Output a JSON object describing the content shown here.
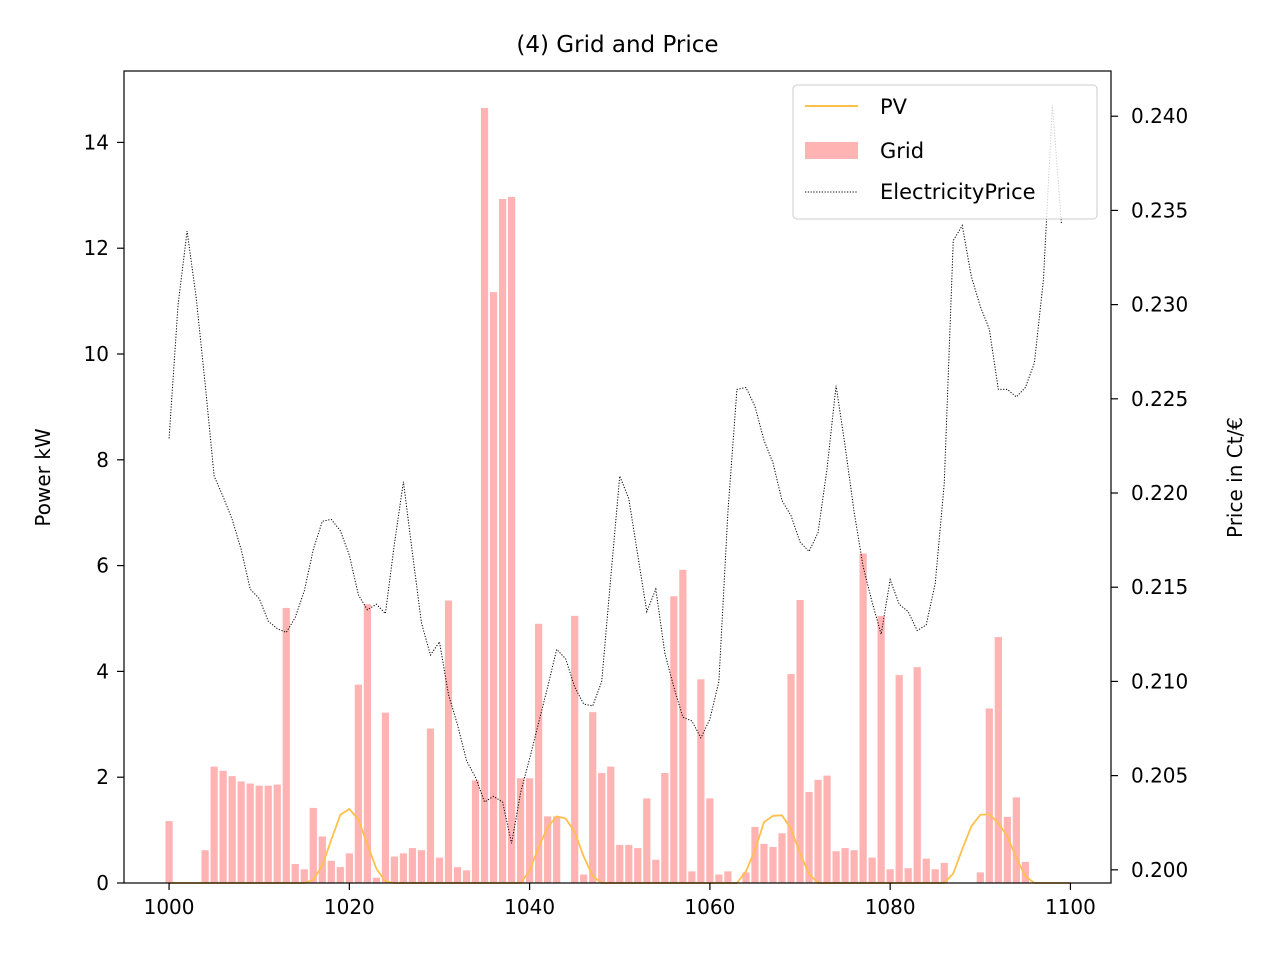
{
  "chart_data": {
    "type": "bar",
    "title": "(4) Grid and Price",
    "ylabel": "Power kW",
    "y2label": "Price in Ct/€",
    "xlim": [
      995,
      1104.5
    ],
    "ylim": [
      0,
      15.35
    ],
    "y2lim": [
      0.1993,
      0.2424
    ],
    "x_ticks": [
      1000,
      1020,
      1040,
      1060,
      1080,
      1100
    ],
    "y_ticks": [
      0,
      2,
      4,
      6,
      8,
      10,
      12,
      14
    ],
    "y2_ticks": [
      0.2,
      0.205,
      0.21,
      0.215,
      0.22,
      0.225,
      0.23,
      0.235,
      0.24
    ],
    "y2_tick_labels": [
      "0.200",
      "0.205",
      "0.210",
      "0.215",
      "0.220",
      "0.225",
      "0.230",
      "0.235",
      "0.240"
    ],
    "legend_position": "top-right",
    "x_start": 1000,
    "series": [
      {
        "name": "Grid",
        "type": "bar",
        "color": "#ffb3b3",
        "values": [
          1.17,
          0,
          0,
          0,
          0.62,
          2.2,
          2.12,
          2.02,
          1.92,
          1.88,
          1.84,
          1.84,
          1.86,
          5.2,
          0.36,
          0.26,
          1.42,
          0.88,
          0.42,
          0.3,
          0.56,
          3.75,
          5.27,
          0.1,
          3.22,
          0.5,
          0.56,
          0.66,
          0.62,
          2.92,
          0.48,
          5.34,
          0.3,
          0.24,
          1.94,
          14.65,
          11.17,
          12.93,
          12.97,
          1.98,
          1.98,
          4.9,
          1.26,
          1.26,
          0,
          5.05,
          0.16,
          3.23,
          2.08,
          2.2,
          0.72,
          0.72,
          0.66,
          1.6,
          0.44,
          2.08,
          5.42,
          5.92,
          0.22,
          3.85,
          1.6,
          0.16,
          0.22,
          0,
          0.2,
          1.06,
          0.74,
          0.68,
          0.94,
          3.95,
          5.35,
          1.72,
          1.95,
          2.03,
          0.6,
          0.66,
          0.62,
          6.23,
          0.48,
          5.05,
          0.26,
          3.93,
          0.28,
          4.08,
          0.46,
          0.26,
          0.38,
          0,
          0,
          0,
          0.2,
          3.3,
          4.65,
          1.25,
          1.62,
          0.4,
          0,
          0,
          0,
          0
        ]
      },
      {
        "name": "PV",
        "type": "line",
        "color": "#ffc04d",
        "values": [
          0,
          0,
          0,
          0,
          0,
          0,
          0,
          0,
          0,
          0,
          0,
          0,
          0,
          0,
          0,
          0,
          0.06,
          0.33,
          0.82,
          1.29,
          1.4,
          1.2,
          0.73,
          0.27,
          0.03,
          0,
          0,
          0,
          0,
          0,
          0,
          0,
          0,
          0,
          0,
          0,
          0,
          0,
          0,
          0,
          0.23,
          0.68,
          1.05,
          1.26,
          1.22,
          0.96,
          0.5,
          0.13,
          0,
          0,
          0,
          0,
          0,
          0,
          0,
          0,
          0,
          0,
          0,
          0,
          0,
          0,
          0,
          0,
          0.22,
          0.62,
          1.15,
          1.27,
          1.28,
          1.02,
          0.56,
          0.17,
          0,
          0,
          0,
          0,
          0,
          0,
          0,
          0,
          0,
          0,
          0,
          0,
          0,
          0,
          0,
          0.18,
          0.64,
          1.07,
          1.29,
          1.3,
          1.13,
          0.88,
          0.47,
          0.13,
          0,
          0,
          0,
          0,
          0
        ]
      },
      {
        "name": "ElectricityPrice",
        "type": "line",
        "axis": "right",
        "color": "#000000",
        "values": [
          0.2229,
          0.23,
          0.2339,
          0.2304,
          0.2258,
          0.2209,
          0.2198,
          0.2186,
          0.217,
          0.2149,
          0.2144,
          0.2132,
          0.2128,
          0.2126,
          0.2134,
          0.2148,
          0.217,
          0.2185,
          0.2186,
          0.218,
          0.2167,
          0.2146,
          0.2138,
          0.2141,
          0.2136,
          0.2173,
          0.2206,
          0.2168,
          0.2131,
          0.2114,
          0.2121,
          0.2093,
          0.2077,
          0.2058,
          0.2049,
          0.2036,
          0.2039,
          0.2036,
          0.2014,
          0.2041,
          0.2059,
          0.2078,
          0.2097,
          0.2117,
          0.2112,
          0.2097,
          0.2088,
          0.2087,
          0.21,
          0.2155,
          0.2209,
          0.2197,
          0.2167,
          0.2137,
          0.2149,
          0.2115,
          0.2097,
          0.2081,
          0.2079,
          0.207,
          0.208,
          0.21,
          0.219,
          0.2255,
          0.2256,
          0.2246,
          0.2228,
          0.2216,
          0.2196,
          0.2188,
          0.2174,
          0.2169,
          0.2179,
          0.2213,
          0.2257,
          0.2225,
          0.219,
          0.2161,
          0.2142,
          0.2125,
          0.2154,
          0.2141,
          0.2137,
          0.2127,
          0.213,
          0.2152,
          0.2205,
          0.2334,
          0.2342,
          0.2315,
          0.2299,
          0.2287,
          0.2255,
          0.2255,
          0.2251,
          0.2256,
          0.2269,
          0.2313,
          0.2406,
          0.2343
        ]
      }
    ]
  }
}
